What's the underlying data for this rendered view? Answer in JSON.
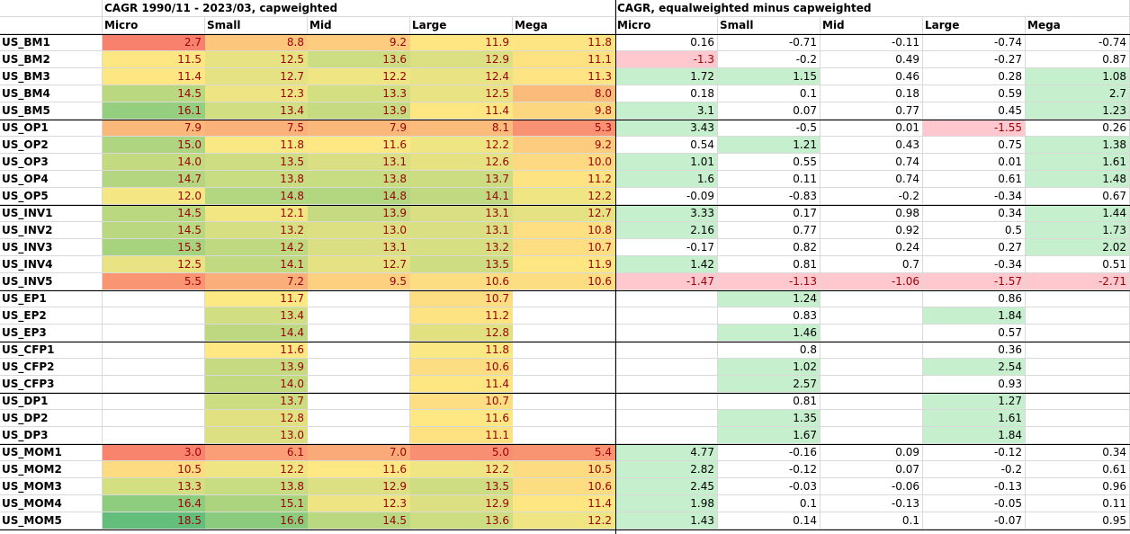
{
  "sheet": {
    "title_cap": "CAGR 1990/11 - 2023/03, capweighted",
    "title_eq": "CAGR, equalweighted minus capweighted",
    "columns": [
      "Micro",
      "Small",
      "Mid",
      "Large",
      "Mega"
    ],
    "cap_font_color": "#9c0006",
    "pos_fill": "#c6efce",
    "neg_fill": "#ffc7ce",
    "rows": [
      {
        "label": "US_BM1",
        "cap": [
          "2.7",
          "8.8",
          "9.2",
          "11.9",
          "11.8"
        ],
        "capColors": [
          "#f8816d",
          "#fcc77d",
          "#fdcc7e",
          "#fee683",
          "#fee583"
        ],
        "eq": [
          "0.16",
          "-0.71",
          "-0.11",
          "-0.74",
          "-0.74"
        ]
      },
      {
        "label": "US_BM2",
        "cap": [
          "11.5",
          "12.5",
          "13.6",
          "12.9",
          "11.1"
        ],
        "capColors": [
          "#fee683",
          "#e8e382",
          "#cddd82",
          "#dde082",
          "#fee282"
        ],
        "eq": [
          "-1.3",
          "-0.2",
          "0.49",
          "-0.27",
          "0.87"
        ]
      },
      {
        "label": "US_BM3",
        "cap": [
          "11.4",
          "12.7",
          "12.2",
          "12.4",
          "11.3"
        ],
        "capColors": [
          "#fee783",
          "#e4e282",
          "#f0e583",
          "#eae383",
          "#fee483"
        ],
        "eq": [
          "1.72",
          "1.15",
          "0.46",
          "0.28",
          "1.08"
        ]
      },
      {
        "label": "US_BM4",
        "cap": [
          "14.5",
          "12.3",
          "13.3",
          "12.5",
          "8.0"
        ],
        "capColors": [
          "#bad880",
          "#eee483",
          "#d4df82",
          "#e9e383",
          "#fbbb7b"
        ],
        "eq": [
          "0.18",
          "0.1",
          "0.18",
          "0.59",
          "2.7"
        ]
      },
      {
        "label": "US_BM5",
        "cap": [
          "16.1",
          "13.4",
          "13.9",
          "11.4",
          "9.8"
        ],
        "capColors": [
          "#95ce7f",
          "#d2de82",
          "#c6db81",
          "#fee683",
          "#fdd680"
        ],
        "eq": [
          "3.1",
          "0.07",
          "0.77",
          "0.45",
          "1.23"
        ]
      },
      {
        "label": "US_OP1",
        "cap": [
          "7.9",
          "7.5",
          "7.9",
          "8.1",
          "5.3"
        ],
        "capColors": [
          "#fbb87b",
          "#fbb27a",
          "#fbb87b",
          "#fbbc7b",
          "#f99273"
        ],
        "eq": [
          "3.43",
          "-0.5",
          "0.01",
          "-1.55",
          "0.26"
        ]
      },
      {
        "label": "US_OP2",
        "cap": [
          "15.0",
          "11.8",
          "11.6",
          "12.2",
          "9.2"
        ],
        "capColors": [
          "#afd580",
          "#f9e883",
          "#fee883",
          "#f0e583",
          "#fdcc7e"
        ],
        "eq": [
          "0.54",
          "1.21",
          "0.43",
          "0.75",
          "1.38"
        ]
      },
      {
        "label": "US_OP3",
        "cap": [
          "14.0",
          "13.5",
          "13.1",
          "12.6",
          "10.0"
        ],
        "capColors": [
          "#c4da81",
          "#cfdd82",
          "#d9df82",
          "#e6e282",
          "#fdd981"
        ],
        "eq": [
          "1.01",
          "0.55",
          "0.74",
          "0.01",
          "1.61"
        ]
      },
      {
        "label": "US_OP4",
        "cap": [
          "14.7",
          "13.8",
          "13.8",
          "13.7",
          "11.2"
        ],
        "capColors": [
          "#b5d680",
          "#c8dc81",
          "#c8dc81",
          "#cbdc81",
          "#fee383"
        ],
        "eq": [
          "1.6",
          "0.11",
          "0.74",
          "0.61",
          "1.48"
        ]
      },
      {
        "label": "US_OP5",
        "cap": [
          "12.0",
          "14.8",
          "14.8",
          "14.1",
          "12.2"
        ],
        "capColors": [
          "#f5e783",
          "#b3d680",
          "#b3d680",
          "#c1da81",
          "#f0e583"
        ],
        "eq": [
          "-0.09",
          "-0.83",
          "-0.2",
          "-0.34",
          "0.67"
        ]
      },
      {
        "label": "US_INV1",
        "cap": [
          "14.5",
          "12.1",
          "13.9",
          "13.1",
          "12.7"
        ],
        "capColors": [
          "#bad880",
          "#f2e683",
          "#c6db81",
          "#d9df82",
          "#e4e282"
        ],
        "eq": [
          "3.33",
          "0.17",
          "0.98",
          "0.34",
          "1.44"
        ]
      },
      {
        "label": "US_INV2",
        "cap": [
          "14.5",
          "13.2",
          "13.0",
          "13.1",
          "10.8"
        ],
        "capColors": [
          "#bad880",
          "#d6df82",
          "#dce082",
          "#d9df82",
          "#fedf82"
        ],
        "eq": [
          "2.16",
          "0.77",
          "0.92",
          "0.5",
          "1.73"
        ]
      },
      {
        "label": "US_INV3",
        "cap": [
          "15.3",
          "14.2",
          "13.1",
          "13.2",
          "10.7"
        ],
        "capColors": [
          "#a7d37f",
          "#bfd981",
          "#d9df82",
          "#d6df82",
          "#fdde82"
        ],
        "eq": [
          "-0.17",
          "0.82",
          "0.24",
          "0.27",
          "2.02"
        ]
      },
      {
        "label": "US_INV4",
        "cap": [
          "12.5",
          "14.1",
          "12.7",
          "13.5",
          "11.9"
        ],
        "capColors": [
          "#e9e383",
          "#c1da81",
          "#e4e282",
          "#cfdd82",
          "#fee683"
        ],
        "eq": [
          "1.42",
          "0.81",
          "0.7",
          "-0.34",
          "0.51"
        ]
      },
      {
        "label": "US_INV5",
        "cap": [
          "5.5",
          "7.2",
          "9.5",
          "10.6",
          "10.6"
        ],
        "capColors": [
          "#f99573",
          "#faae79",
          "#fdd07f",
          "#fddd82",
          "#fddd82"
        ],
        "eq": [
          "-1.47",
          "-1.13",
          "-1.06",
          "-1.57",
          "-2.71"
        ]
      },
      {
        "label": "US_EP1",
        "cap": [
          "",
          "11.7",
          "",
          "10.7",
          ""
        ],
        "capColors": [
          "",
          "#fde983",
          "",
          "#fdde82",
          ""
        ],
        "eq": [
          "",
          "1.24",
          "",
          "0.86",
          ""
        ]
      },
      {
        "label": "US_EP2",
        "cap": [
          "",
          "13.4",
          "",
          "11.2",
          ""
        ],
        "capColors": [
          "",
          "#d2de82",
          "",
          "#fee383",
          ""
        ],
        "eq": [
          "",
          "0.83",
          "",
          "1.84",
          ""
        ]
      },
      {
        "label": "US_EP3",
        "cap": [
          "",
          "14.4",
          "",
          "12.8",
          ""
        ],
        "capColors": [
          "",
          "#bdd881",
          "",
          "#e1e182",
          ""
        ],
        "eq": [
          "",
          "1.46",
          "",
          "0.57",
          ""
        ]
      },
      {
        "label": "US_CFP1",
        "cap": [
          "",
          "11.6",
          "",
          "11.8",
          ""
        ],
        "capColors": [
          "",
          "#fee883",
          "",
          "#f9e883",
          ""
        ],
        "eq": [
          "",
          "0.8",
          "",
          "0.36",
          ""
        ]
      },
      {
        "label": "US_CFP2",
        "cap": [
          "",
          "13.9",
          "",
          "10.6",
          ""
        ],
        "capColors": [
          "",
          "#c6db81",
          "",
          "#fddd82",
          ""
        ],
        "eq": [
          "",
          "1.02",
          "",
          "2.54",
          ""
        ]
      },
      {
        "label": "US_CFP3",
        "cap": [
          "",
          "14.0",
          "",
          "11.4",
          ""
        ],
        "capColors": [
          "",
          "#c4da81",
          "",
          "#fee683",
          ""
        ],
        "eq": [
          "",
          "2.57",
          "",
          "0.93",
          ""
        ]
      },
      {
        "label": "US_DP1",
        "cap": [
          "",
          "13.7",
          "",
          "10.7",
          ""
        ],
        "capColors": [
          "",
          "#cbdc81",
          "",
          "#fdde82",
          ""
        ],
        "eq": [
          "",
          "0.81",
          "",
          "1.27",
          ""
        ]
      },
      {
        "label": "US_DP2",
        "cap": [
          "",
          "12.8",
          "",
          "11.6",
          ""
        ],
        "capColors": [
          "",
          "#e1e182",
          "",
          "#fee883",
          ""
        ],
        "eq": [
          "",
          "1.35",
          "",
          "1.61",
          ""
        ]
      },
      {
        "label": "US_DP3",
        "cap": [
          "",
          "13.0",
          "",
          "11.1",
          ""
        ],
        "capColors": [
          "",
          "#dce082",
          "",
          "#fee282",
          ""
        ],
        "eq": [
          "",
          "1.67",
          "",
          "1.84",
          ""
        ]
      },
      {
        "label": "US_MOM1",
        "cap": [
          "3.0",
          "6.1",
          "7.0",
          "5.0",
          "5.4"
        ],
        "capColors": [
          "#f8846e",
          "#f99e76",
          "#faa978",
          "#f98f72",
          "#f99473"
        ],
        "eq": [
          "4.77",
          "-0.16",
          "0.09",
          "-0.12",
          "0.34"
        ]
      },
      {
        "label": "US_MOM2",
        "cap": [
          "10.5",
          "12.2",
          "11.6",
          "12.2",
          "10.5"
        ],
        "capColors": [
          "#fddc81",
          "#f0e583",
          "#fee883",
          "#f0e583",
          "#fddc81"
        ],
        "eq": [
          "2.82",
          "-0.12",
          "0.07",
          "-0.2",
          "0.61"
        ]
      },
      {
        "label": "US_MOM3",
        "cap": [
          "13.3",
          "13.8",
          "12.9",
          "13.5",
          "10.6"
        ],
        "capColors": [
          "#d4df82",
          "#c8dc81",
          "#dde082",
          "#cfdd82",
          "#fddd82"
        ],
        "eq": [
          "2.45",
          "-0.03",
          "-0.06",
          "-0.13",
          "0.96"
        ]
      },
      {
        "label": "US_MOM4",
        "cap": [
          "16.4",
          "15.1",
          "12.3",
          "12.9",
          "11.4"
        ],
        "capColors": [
          "#8ecc7e",
          "#acd47f",
          "#eee483",
          "#dde082",
          "#fee683"
        ],
        "eq": [
          "1.98",
          "0.1",
          "-0.13",
          "-0.05",
          "0.11"
        ]
      },
      {
        "label": "US_MOM5",
        "cap": [
          "18.5",
          "16.6",
          "14.5",
          "13.6",
          "12.2"
        ],
        "capColors": [
          "#63be7b",
          "#8acb7e",
          "#bad880",
          "#cddd82",
          "#f0e583"
        ],
        "eq": [
          "1.43",
          "0.14",
          "0.1",
          "-0.07",
          "0.95"
        ]
      }
    ]
  }
}
